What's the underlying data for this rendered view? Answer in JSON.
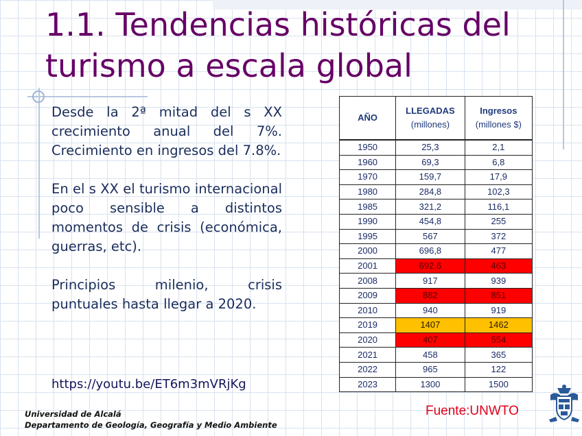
{
  "slide": {
    "title_line1": "1.1. Tendencias históricas del",
    "title_line2": "turismo a escala global",
    "paragraphs": [
      "Desde la 2ª mitad del s XX crecimiento anual del 7%. Crecimiento en ingresos del 7.8%.",
      "En el s XX el turismo internacional poco sensible a distintos momentos de crisis (económica, guerras, etc).",
      "Principios milenio, crisis puntuales hasta llegar a 2020."
    ],
    "link": "https://youtu.be/ET6m3mVRjKg",
    "institution_line1": "Universidad de Alcalá",
    "institution_line2": "Departamento de Geología, Geografía y Medio Ambiente",
    "source": "Fuente:UNWTO"
  },
  "colors": {
    "title": "#660066",
    "highlight_red": "#ff0000",
    "highlight_yellow": "#ffc000",
    "source_text": "#e0001a"
  },
  "table": {
    "headers": {
      "year": "AÑO",
      "arrivals_line1": "LLEGADAS",
      "arrivals_line2": "(millones)",
      "income_line1": "Ingresos",
      "income_line2": "(millones $)"
    },
    "rows": [
      {
        "year": "1950",
        "arrivals": "25,3",
        "income": "2,1",
        "highlight": ""
      },
      {
        "year": "1960",
        "arrivals": "69,3",
        "income": "6,8",
        "highlight": ""
      },
      {
        "year": "1970",
        "arrivals": "159,7",
        "income": "17,9",
        "highlight": ""
      },
      {
        "year": "1980",
        "arrivals": "284,8",
        "income": "102,3",
        "highlight": ""
      },
      {
        "year": "1985",
        "arrivals": "321,2",
        "income": "116,1",
        "highlight": ""
      },
      {
        "year": "1990",
        "arrivals": "454,8",
        "income": "255",
        "highlight": ""
      },
      {
        "year": "1995",
        "arrivals": "567",
        "income": "372",
        "highlight": ""
      },
      {
        "year": "2000",
        "arrivals": "696,8",
        "income": "477",
        "highlight": ""
      },
      {
        "year": "2001",
        "arrivals": "692,6",
        "income": "463",
        "highlight": "red"
      },
      {
        "year": "2008",
        "arrivals": "917",
        "income": "939",
        "highlight": ""
      },
      {
        "year": "2009",
        "arrivals": "882",
        "income": "851",
        "highlight": "red"
      },
      {
        "year": "2010",
        "arrivals": "940",
        "income": "919",
        "highlight": ""
      },
      {
        "year": "2019",
        "arrivals": "1407",
        "income": "1462",
        "highlight": "yellow"
      },
      {
        "year": "2020",
        "arrivals": "407",
        "income": "554",
        "highlight": "red"
      },
      {
        "year": "2021",
        "arrivals": "458",
        "income": "365",
        "highlight": ""
      },
      {
        "year": "2022",
        "arrivals": "965",
        "income": "122",
        "highlight": ""
      },
      {
        "year": "2023",
        "arrivals": "1300",
        "income": "1500",
        "highlight": ""
      }
    ]
  },
  "icons": {
    "logo": "university-crest-icon"
  }
}
